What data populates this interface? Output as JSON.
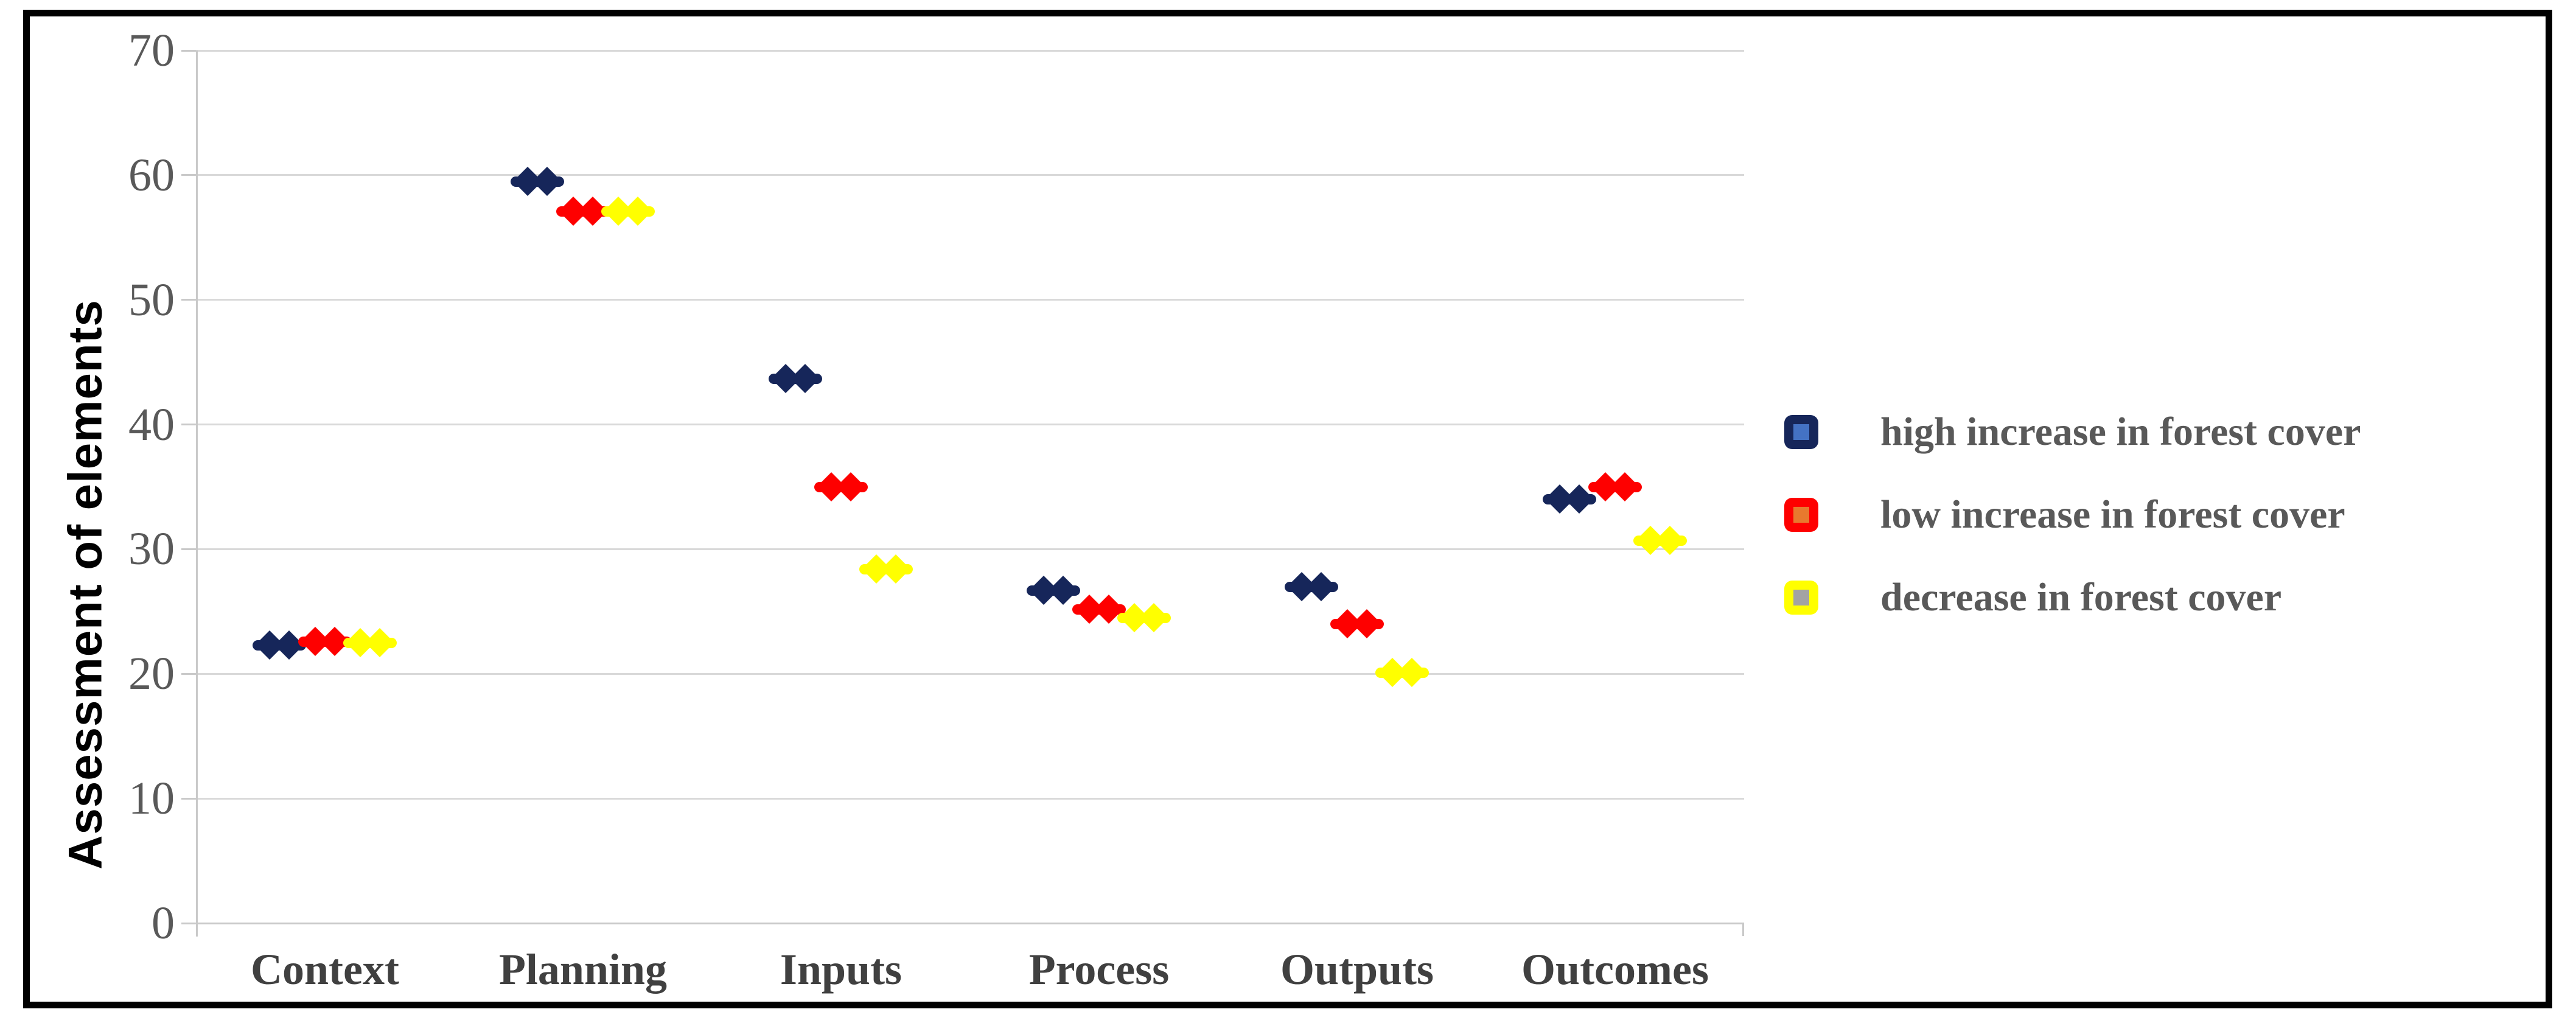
{
  "chart_data": {
    "type": "scatter",
    "title": "",
    "ylabel": "Assessment of elements",
    "xlabel": "",
    "ylim": [
      0,
      70
    ],
    "yticks": [
      0,
      10,
      20,
      30,
      40,
      50,
      60,
      70
    ],
    "grid": "horizontal",
    "legend_position": "right",
    "marker_shape": "double-diamond-with-dash",
    "categories": [
      "Context",
      "Planning",
      "Inputs",
      "Process",
      "Outputs",
      "Outcomes"
    ],
    "series": [
      {
        "name": "high increase in forest cover",
        "color": "#16265a",
        "legend_inner_color": "#4472c4",
        "values": [
          22.3,
          59.5,
          43.7,
          26.7,
          27.0,
          34.0
        ]
      },
      {
        "name": "low increase in forest cover",
        "color": "#fe0000",
        "legend_inner_color": "#e8792e",
        "values": [
          22.6,
          57.1,
          35.0,
          25.2,
          24.0,
          35.0
        ]
      },
      {
        "name": "decrease in forest cover",
        "color": "#ffff00",
        "legend_inner_color": "#a3a3a3",
        "values": [
          22.5,
          57.1,
          28.4,
          24.5,
          20.1,
          30.7
        ]
      }
    ]
  }
}
